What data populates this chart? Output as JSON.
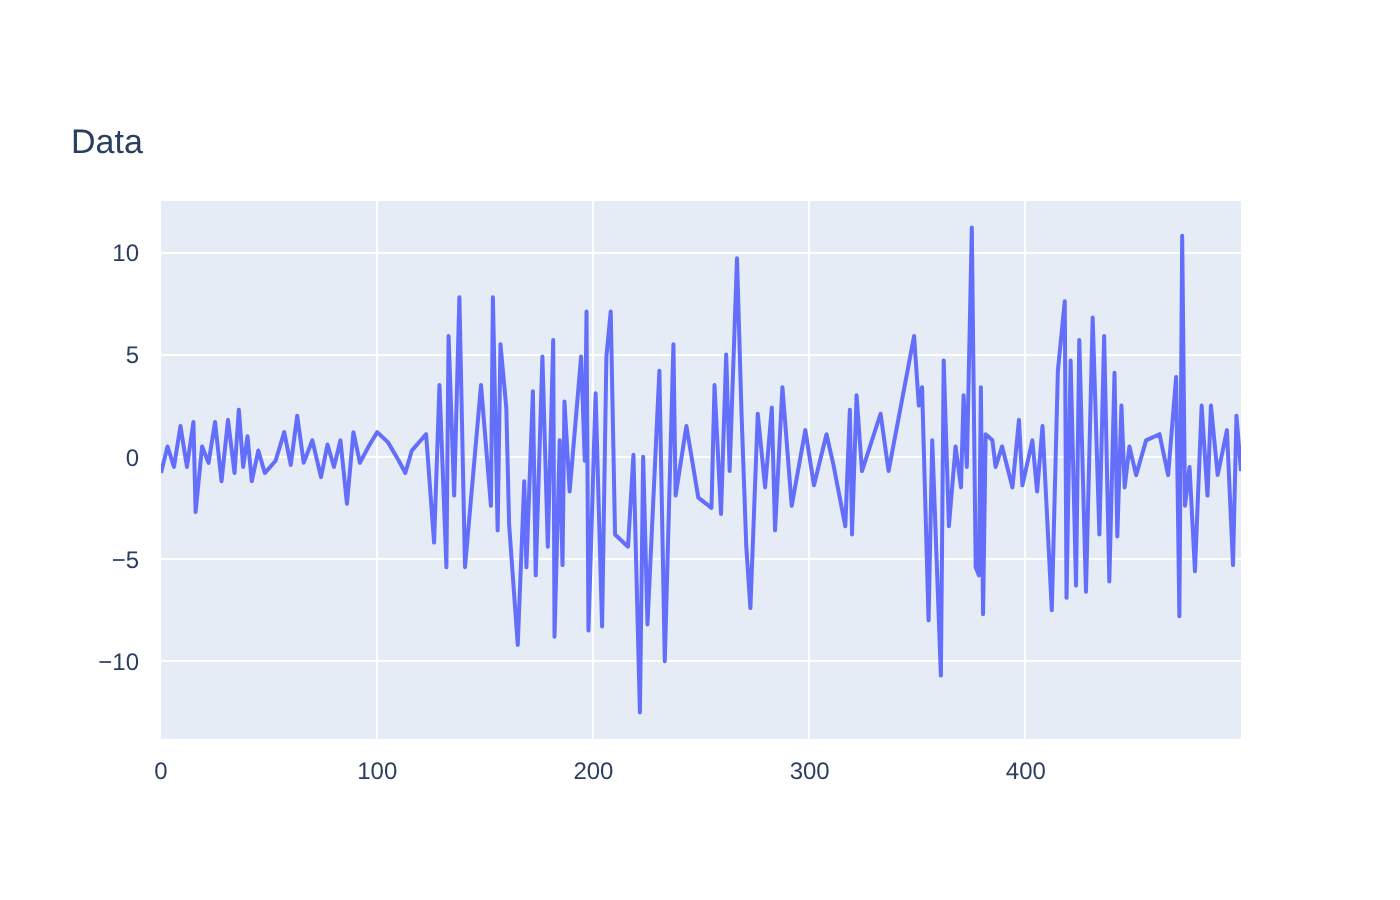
{
  "chart_data": {
    "type": "line",
    "title": "Data",
    "series": [
      {
        "color": "#636efa",
        "x": [
          0,
          3,
          6,
          9,
          12,
          15,
          16,
          19,
          22,
          25,
          28,
          31,
          34,
          36,
          38,
          40,
          42,
          45,
          48,
          53,
          57,
          60,
          63,
          66,
          70,
          74,
          77,
          80,
          83,
          86,
          89,
          92,
          96,
          100,
          105,
          110,
          113,
          116,
          122.6,
          126.3,
          128.8,
          132,
          133,
          135.6,
          138,
          140.6,
          148,
          152.6,
          153.5,
          155.7,
          157,
          159.7,
          161,
          165,
          168,
          169,
          172,
          173.3,
          176.4,
          178.9,
          181.4,
          182,
          184.4,
          185.7,
          186.6,
          189,
          194.3,
          196,
          196.8,
          197.7,
          201,
          204,
          206,
          208,
          210,
          216,
          218.5,
          221.5,
          223,
          225,
          230.5,
          233,
          237,
          238,
          243,
          248.5,
          254.6,
          256,
          259,
          261.4,
          263,
          266.4,
          268.5,
          270.7,
          272.6,
          276,
          279.4,
          282.5,
          284,
          287.4,
          291.7,
          298,
          302,
          307.8,
          311,
          316.5,
          318.6,
          319.6,
          321.7,
          324.2,
          332.8,
          336.5,
          348.3,
          350.5,
          352,
          355,
          356.7,
          360.7,
          362,
          364.4,
          367.5,
          370,
          371.2,
          372.7,
          375,
          376.8,
          378.3,
          379.2,
          380.2,
          381.4,
          384.5,
          386,
          389,
          393.8,
          396.8,
          398.4,
          403,
          405.2,
          407.7,
          412,
          414.8,
          418,
          418.8,
          420.7,
          423.2,
          424.7,
          427.8,
          430.9,
          434,
          436.2,
          438.6,
          441,
          442.3,
          444.2,
          445.7,
          447.9,
          451,
          455.6,
          461.8,
          465.8,
          469.5,
          471,
          472.3,
          473.6,
          475.7,
          478.2,
          481.3,
          484,
          485.6,
          488.7,
          493,
          495.8,
          497.4,
          499.5
        ],
        "values": [
          -0.8,
          0.5,
          -0.5,
          1.5,
          -0.5,
          1.7,
          -2.7,
          0.5,
          -0.3,
          1.7,
          -1.2,
          1.8,
          -0.8,
          2.3,
          -0.5,
          1.0,
          -1.2,
          0.3,
          -0.8,
          -0.2,
          1.2,
          -0.4,
          2.0,
          -0.3,
          0.8,
          -1.0,
          0.6,
          -0.5,
          0.8,
          -2.3,
          1.2,
          -0.3,
          0.5,
          1.2,
          0.7,
          -0.2,
          -0.8,
          0.3,
          1.1,
          -4.2,
          3.5,
          -5.4,
          5.9,
          -1.9,
          7.8,
          -5.4,
          3.5,
          -2.4,
          7.8,
          -3.6,
          5.5,
          2.4,
          -3.3,
          -9.2,
          -1.2,
          -5.4,
          3.2,
          -5.8,
          4.9,
          -4.4,
          5.7,
          -8.8,
          0.8,
          -5.3,
          2.7,
          -1.7,
          4.9,
          -0.2,
          7.1,
          -8.5,
          3.1,
          -8.3,
          4.9,
          7.1,
          -3.8,
          -4.4,
          0.1,
          -12.5,
          0,
          -8.2,
          4.2,
          -10,
          5.5,
          -1.9,
          1.5,
          -2,
          -2.5,
          3.5,
          -2.8,
          5,
          -0.7,
          9.7,
          2.1,
          -4.4,
          -7.4,
          2.1,
          -1.5,
          2.4,
          -3.6,
          3.4,
          -2.4,
          1.3,
          -1.4,
          1.1,
          -0.4,
          -3.4,
          2.3,
          -3.8,
          3.0,
          -0.7,
          2.1,
          -0.7,
          5.9,
          2.5,
          3.4,
          -8.0,
          0.8,
          -10.7,
          4.7,
          -3.4,
          0.5,
          -1.5,
          3.0,
          -0.5,
          11.2,
          -5.4,
          -5.8,
          3.4,
          -7.7,
          1.1,
          0.8,
          -0.5,
          0.5,
          -1.5,
          1.8,
          -1.4,
          0.8,
          -1.7,
          1.5,
          -7.5,
          4.2,
          7.6,
          -6.9,
          4.7,
          -6.3,
          5.7,
          -6.6,
          6.8,
          -3.8,
          5.9,
          -6.1,
          4.1,
          -3.9,
          2.5,
          -1.5,
          0.5,
          -0.9,
          0.8,
          1.1,
          -0.9,
          3.9,
          -7.8,
          10.8,
          -2.4,
          -0.5,
          -5.6,
          2.5,
          -1.9,
          2.5,
          -0.9,
          1.3,
          -5.3,
          2.0,
          -0.7
        ]
      }
    ],
    "xlim": [
      0,
      499.5
    ],
    "ylim": [
      -13.8,
      12.5
    ],
    "xticks": [
      0,
      100,
      200,
      300,
      400
    ],
    "yticks": [
      {
        "value": -10,
        "label": "−10"
      },
      {
        "value": -5,
        "label": "−5"
      },
      0,
      5,
      10
    ],
    "grid": true,
    "line_style": "solid"
  }
}
